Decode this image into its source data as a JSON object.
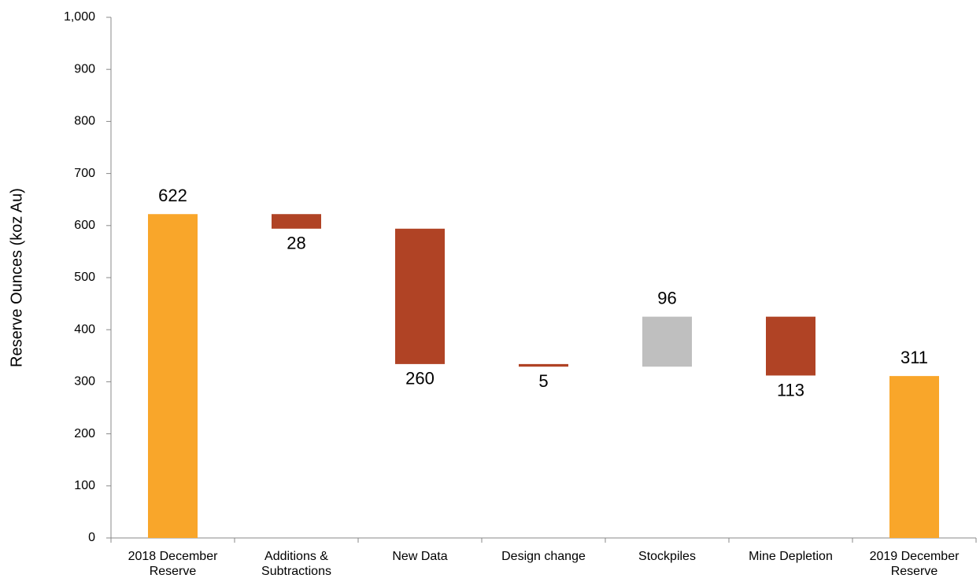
{
  "chart_data": {
    "type": "waterfall",
    "y_label": "Reserve Ounces (koz Au)",
    "categories": [
      "2018 December Reserve",
      "Additions & Subtractions",
      "New Data",
      "Design change",
      "Stockpiles",
      "Mine Depletion",
      "2019 December Reserve"
    ],
    "measure": [
      "total",
      "relative",
      "relative",
      "relative",
      "relative",
      "relative",
      "total"
    ],
    "values": [
      622,
      -28,
      -260,
      -5,
      96,
      -113,
      311
    ],
    "value_labels": [
      "622",
      "28",
      "260",
      "5",
      "96",
      "113",
      "311"
    ],
    "colors": [
      "#f9a62a",
      "#b04325",
      "#b04325",
      "#b04325",
      "#bfbfbf",
      "#b04325",
      "#f9a62a"
    ],
    "ylim": [
      0,
      1000
    ],
    "yticks": [
      0,
      100,
      200,
      300,
      400,
      500,
      600,
      700,
      800,
      900,
      {
        "value": 1000,
        "label": "1,000"
      }
    ]
  }
}
